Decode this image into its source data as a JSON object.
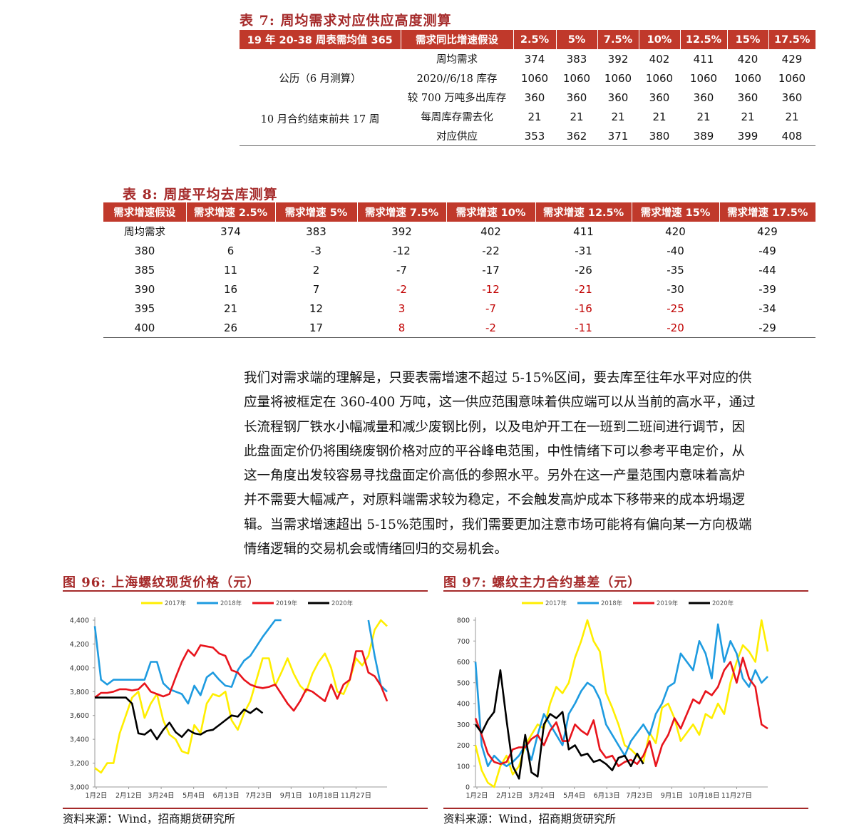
{
  "table7": {
    "title": "表 7: 周均需求对应供应高度测算",
    "headers": [
      "19 年 20-38 周表需均值 365",
      "需求同比增速假设",
      "2.5%",
      "5%",
      "7.5%",
      "10%",
      "12.5%",
      "15%",
      "17.5%"
    ],
    "left_labels": [
      "公历（6 月测算）",
      "10 月合约结束前共 17 周"
    ],
    "rows": [
      {
        "label": "周均需求",
        "values": [
          "374",
          "383",
          "392",
          "402",
          "411",
          "420",
          "429"
        ]
      },
      {
        "label": "2020//6/18 库存",
        "values": [
          "1060",
          "1060",
          "1060",
          "1060",
          "1060",
          "1060",
          "1060"
        ]
      },
      {
        "label": "较 700 万吨多出库存",
        "values": [
          "360",
          "360",
          "360",
          "360",
          "360",
          "360",
          "360"
        ]
      },
      {
        "label": "每周库存需去化",
        "values": [
          "21",
          "21",
          "21",
          "21",
          "21",
          "21",
          "21"
        ]
      },
      {
        "label": "对应供应",
        "values": [
          "353",
          "362",
          "371",
          "380",
          "389",
          "399",
          "408"
        ]
      }
    ]
  },
  "table8": {
    "title": "表 8: 周度平均去库测算",
    "headers": [
      "需求增速假设",
      "需求增速 2.5%",
      "需求增速 5%",
      "需求增速 7.5%",
      "需求增速 10%",
      "需求增速 12.5%",
      "需求增速 15%",
      "需求增速 17.5%"
    ],
    "rows": [
      {
        "label": "周均需求",
        "values": [
          "374",
          "383",
          "392",
          "402",
          "411",
          "420",
          "429"
        ]
      },
      {
        "label": "380",
        "values": [
          "6",
          "-3",
          "-12",
          "-22",
          "-31",
          "-40",
          "-49"
        ]
      },
      {
        "label": "385",
        "values": [
          "11",
          "2",
          "-7",
          "-17",
          "-26",
          "-35",
          "-44"
        ]
      },
      {
        "label": "390",
        "values": [
          "16",
          "7",
          "-2",
          "-12",
          "-21",
          "-30",
          "-39"
        ]
      },
      {
        "label": "395",
        "values": [
          "21",
          "12",
          "3",
          "-7",
          "-16",
          "-25",
          "-34"
        ]
      },
      {
        "label": "400",
        "values": [
          "26",
          "17",
          "8",
          "-2",
          "-11",
          "-20",
          "-29"
        ]
      }
    ],
    "red_from_col": [
      null,
      null,
      3,
      3,
      3,
      4,
      6
    ]
  },
  "paragraph": [
    "我们对需求端的理解是，只要表需增速不超过 5-15%区间，要去库至往年水平对应的供",
    "应量将被框定在 360-400 万吨，这一供应范围意味着供应端可以从当前的高水平，通过",
    "长流程钢厂铁水小幅减量和减少废钢比例，以及电炉开工在一班到二班间进行调节，因",
    "此盘面定价仍将围绕废钢价格对应的平谷峰电范围，中性情绪下可以参考平电定价，从",
    "这一角度出发较容易寻找盘面定价高低的参照水平。另外在这一产量范围内意味着高炉",
    "并不需要大幅减产，对原料端需求较为稳定，不会触发高炉成本下移带来的成本坍塌逻",
    "辑。当需求增速超出 5-15%范围时，我们需要更加注意市场可能将有偏向某一方向极端",
    "情绪逻辑的交易机会或情绪回归的交易机会。"
  ],
  "colors": {
    "y2017": "#ffee00",
    "y2018": "#1e9be0",
    "y2019": "#e8141c",
    "y2020": "#000000",
    "accent": "#a52a2a",
    "header_bg": "#c0392b"
  },
  "chart_data": [
    {
      "type": "line",
      "title": "图 96: 上海螺纹现货价格（元）",
      "source": "资料来源：Wind，招商期货研究所",
      "legend": [
        "2017年",
        "2018年",
        "2019年",
        "2020年"
      ],
      "legend_position": "top",
      "x_ticks": [
        "1月2日",
        "2月12日",
        "3月24日",
        "5月4日",
        "6月13日",
        "7月23日",
        "9月1日",
        "10月18日",
        "11月27日"
      ],
      "y_ticks": [
        "3,000",
        "3,200",
        "3,400",
        "3,600",
        "3,800",
        "4,000",
        "4,200",
        "4,400"
      ],
      "ylim": [
        3000,
        4400
      ],
      "series": [
        {
          "name": "2017年",
          "values": [
            3160,
            3120,
            3200,
            3200,
            3450,
            3600,
            3750,
            3800,
            3580,
            3700,
            3780,
            3560,
            3440,
            3400,
            3300,
            3280,
            3520,
            3450,
            3700,
            3780,
            3760,
            3800,
            3560,
            3480,
            3620,
            3720,
            3900,
            4080,
            4080,
            3850,
            3960,
            4080,
            3950,
            3850,
            3800,
            3950,
            4050,
            4120,
            4000,
            3800,
            3780,
            3900,
            4080,
            4020,
            4100,
            4320,
            4400,
            4350
          ]
        },
        {
          "name": "2018年",
          "values": [
            4350,
            3900,
            3860,
            3900,
            3900,
            3900,
            3900,
            3900,
            3900,
            4050,
            4050,
            3870,
            3820,
            3800,
            3780,
            3700,
            3850,
            3770,
            3920,
            3960,
            3900,
            3850,
            3840,
            3980,
            4060,
            4100,
            4180,
            4260,
            4330,
            4400,
            4400,
            null,
            null,
            null,
            null,
            null,
            null,
            null,
            null,
            null,
            null,
            null,
            null,
            null,
            4400,
            4100,
            3850,
            3800
          ]
        },
        {
          "name": "2019年",
          "values": [
            3750,
            3790,
            3790,
            3800,
            3820,
            3820,
            3810,
            3820,
            3870,
            3800,
            3780,
            3760,
            3780,
            3920,
            4050,
            4150,
            4100,
            4190,
            4180,
            4170,
            4120,
            4100,
            3980,
            3960,
            3900,
            3860,
            3840,
            3830,
            3840,
            3860,
            3780,
            3700,
            3640,
            3720,
            3820,
            3800,
            3760,
            3720,
            3860,
            3740,
            3860,
            3900,
            4140,
            4140,
            3960,
            3930,
            3850,
            3720
          ]
        },
        {
          "name": "2020年",
          "values": [
            3750,
            3750,
            3750,
            3750,
            3750,
            3750,
            3700,
            3450,
            3440,
            3480,
            3400,
            3480,
            3540,
            3460,
            3420,
            3480,
            3450,
            3440,
            3470,
            3480,
            3520,
            3560,
            3600,
            3590,
            3650,
            3620,
            3660,
            3620,
            null,
            null,
            null,
            null,
            null,
            null,
            null,
            null,
            null,
            null,
            null,
            null,
            null,
            null,
            null,
            null,
            null,
            null,
            null,
            null
          ]
        }
      ]
    },
    {
      "type": "line",
      "title": "图 97: 螺纹主力合约基差（元）",
      "source": "资料来源：Wind，招商期货研究所",
      "legend": [
        "2017年",
        "2018年",
        "2019年",
        "2020年"
      ],
      "legend_position": "top",
      "x_ticks": [
        "1月2日",
        "2月12日",
        "3月24日",
        "5月4日",
        "6月13日",
        "7月23日",
        "9月1日",
        "10月18日",
        "11月27日"
      ],
      "y_ticks": [
        "0",
        "100",
        "200",
        "300",
        "400",
        "500",
        "600",
        "700",
        "800"
      ],
      "ylim": [
        0,
        800
      ],
      "series": [
        {
          "name": "2017年",
          "values": [
            200,
            80,
            20,
            0,
            100,
            150,
            60,
            100,
            200,
            250,
            300,
            280,
            400,
            480,
            450,
            500,
            620,
            700,
            800,
            700,
            650,
            450,
            380,
            300,
            200,
            180,
            150,
            120,
            260,
            210,
            380,
            400,
            330,
            220,
            260,
            300,
            250,
            350,
            330,
            400,
            350,
            500,
            600,
            680,
            650,
            600,
            800,
            650
          ]
        },
        {
          "name": "2018年",
          "values": [
            600,
            200,
            100,
            150,
            120,
            100,
            120,
            150,
            200,
            130,
            250,
            350,
            300,
            250,
            200,
            350,
            400,
            460,
            500,
            480,
            420,
            300,
            250,
            200,
            150,
            220,
            260,
            300,
            250,
            350,
            400,
            480,
            500,
            640,
            600,
            560,
            700,
            640,
            520,
            780,
            600,
            700,
            640,
            520,
            480,
            560,
            500,
            530
          ]
        },
        {
          "name": "2019年",
          "values": [
            330,
            250,
            160,
            120,
            110,
            120,
            180,
            190,
            190,
            230,
            250,
            200,
            270,
            310,
            220,
            220,
            300,
            270,
            250,
            320,
            180,
            140,
            150,
            100,
            120,
            130,
            110,
            150,
            220,
            100,
            200,
            250,
            330,
            280,
            350,
            420,
            400,
            460,
            440,
            480,
            560,
            600,
            500,
            620,
            520,
            480,
            300,
            280
          ]
        },
        {
          "name": "2020年",
          "values": [
            300,
            260,
            320,
            360,
            560,
            320,
            100,
            40,
            250,
            70,
            50,
            300,
            350,
            330,
            360,
            180,
            200,
            150,
            160,
            120,
            130,
            110,
            80,
            140,
            150,
            100,
            160,
            110,
            null,
            null,
            null,
            null,
            null,
            null,
            null,
            null,
            null,
            null,
            null,
            null,
            null,
            null,
            null,
            null,
            null,
            null,
            null,
            null
          ]
        }
      ]
    }
  ]
}
